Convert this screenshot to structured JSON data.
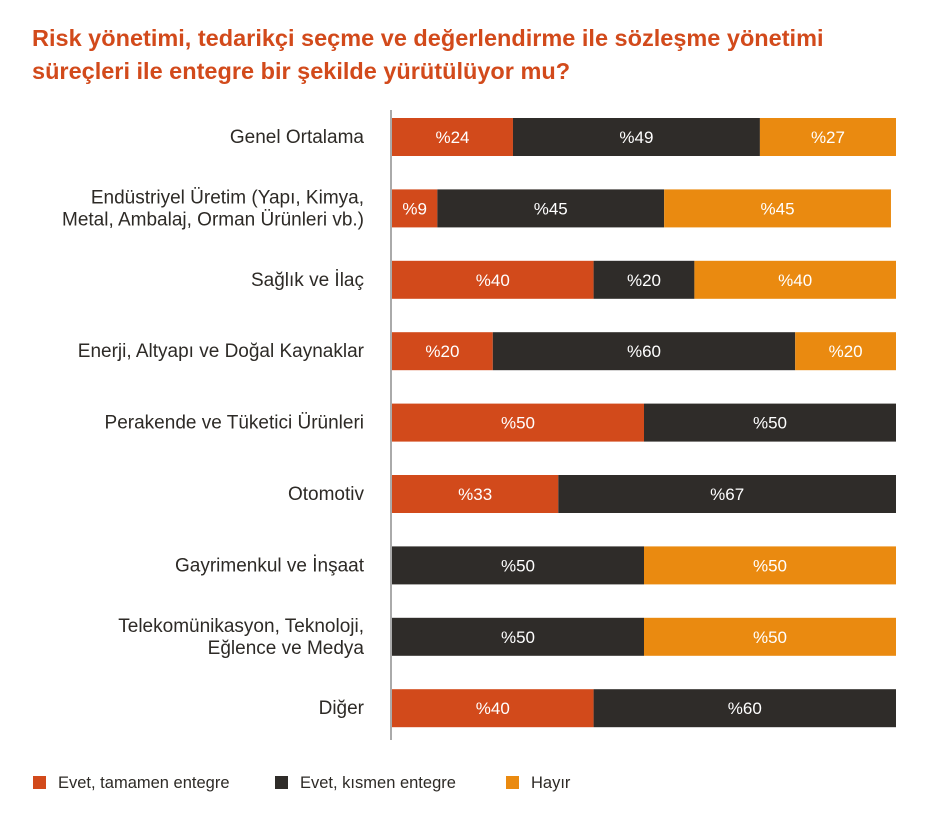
{
  "title": {
    "line1": "Risk yönetimi, tedarikçi seçme ve değerlendirme ile sözleşme yönetimi",
    "line2": "süreçleri ile entegre bir şekilde yürütülüyor mu?"
  },
  "chart_data": {
    "type": "bar",
    "orientation": "horizontal",
    "stacked": true,
    "xlim": [
      0,
      100
    ],
    "value_prefix": "%",
    "categories": [
      [
        "Genel Ortalama"
      ],
      [
        "Endüstriyel Üretim (Yapı, Kimya,",
        "Metal, Ambalaj, Orman Ürünleri vb.)"
      ],
      [
        "Sağlık ve İlaç"
      ],
      [
        "Enerji, Altyapı ve Doğal Kaynaklar"
      ],
      [
        "Perakende ve Tüketici Ürünleri"
      ],
      [
        "Otomotiv"
      ],
      [
        "Gayrimenkul ve İnşaat"
      ],
      [
        "Telekomünikasyon, Teknoloji,",
        "Eğlence ve Medya"
      ],
      [
        "Diğer"
      ]
    ],
    "series": [
      {
        "name": "Evet, tamamen entegre",
        "color": "#d24a1b",
        "values": [
          24,
          9,
          40,
          20,
          50,
          33,
          0,
          0,
          40
        ]
      },
      {
        "name": "Evet, kısmen entegre",
        "color": "#2f2c29",
        "values": [
          49,
          45,
          20,
          60,
          50,
          67,
          50,
          50,
          60
        ]
      },
      {
        "name": "Hayır",
        "color": "#ea8a10",
        "values": [
          27,
          45,
          40,
          20,
          0,
          0,
          50,
          50,
          0
        ]
      }
    ],
    "legend_position": "bottom",
    "grid": false
  }
}
